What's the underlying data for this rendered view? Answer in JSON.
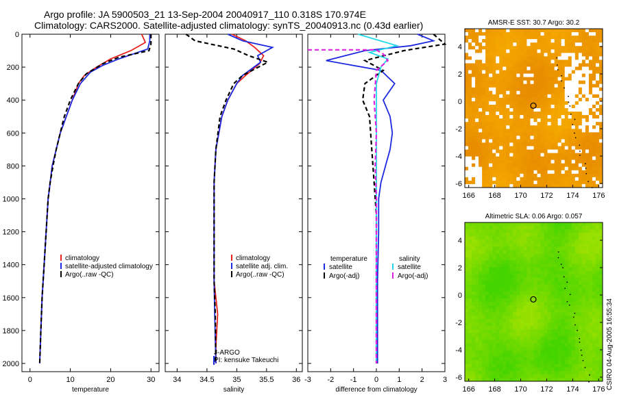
{
  "header": {
    "line1": "Argo profile: JA 5900503_21 13-Sep-2004 20040917_110 0.318S 170.974E",
    "line2": "Climatology: CARS2000. Satellite-adjusted climatology: synTS_20040913.nc (0.43d earlier)"
  },
  "credit": "CSIRO 04-Aug-2005 16:55:34",
  "chart_data": [
    {
      "type": "line",
      "id": "temperature",
      "xlabel": "temperature",
      "ylabel": "",
      "xlim": [
        -2,
        32
      ],
      "ylim": [
        2050,
        0
      ],
      "xticks": [
        0,
        10,
        20,
        30
      ],
      "xtick_labels": [
        "0",
        "10",
        "20",
        "30"
      ],
      "yticks": [
        0,
        200,
        400,
        600,
        800,
        1000,
        1200,
        1400,
        1600,
        1800,
        2000
      ],
      "ytick_labels": [
        "0",
        "200",
        "400",
        "600",
        "800",
        "1000",
        "1200",
        "1400",
        "1600",
        "1800",
        "2000"
      ],
      "series": [
        {
          "name": "climatology",
          "color": "#e8201c",
          "dash": "",
          "points": [
            [
              27.7,
              0
            ],
            [
              28.6,
              50
            ],
            [
              25,
              100
            ],
            [
              20,
              150
            ],
            [
              16.5,
              200
            ],
            [
              13.5,
              250
            ],
            [
              12,
              300
            ],
            [
              10.5,
              400
            ],
            [
              9,
              500
            ],
            [
              7.5,
              600
            ],
            [
              6.5,
              700
            ],
            [
              5.5,
              800
            ],
            [
              5,
              900
            ],
            [
              4.5,
              1000
            ],
            [
              4,
              1200
            ],
            [
              3.5,
              1400
            ],
            [
              3,
              1600
            ],
            [
              2.7,
              1800
            ],
            [
              2.4,
              2000
            ]
          ]
        },
        {
          "name": "satellite-adjusted climatology",
          "color": "#1c28e0",
          "dash": "",
          "points": [
            [
              29.7,
              0
            ],
            [
              29.7,
              40
            ],
            [
              29.2,
              90
            ],
            [
              22,
              150
            ],
            [
              18,
              190
            ],
            [
              15,
              230
            ],
            [
              12.5,
              300
            ],
            [
              10.5,
              400
            ],
            [
              9,
              500
            ],
            [
              7.5,
              600
            ],
            [
              6.5,
              700
            ],
            [
              5.5,
              800
            ],
            [
              5,
              900
            ],
            [
              4.5,
              1000
            ],
            [
              4,
              1200
            ],
            [
              3.5,
              1400
            ],
            [
              3,
              1600
            ],
            [
              2.7,
              1800
            ],
            [
              2.4,
              2000
            ]
          ]
        },
        {
          "name": "Argo(..raw -QC)",
          "color": "#000000",
          "dash": "6,4",
          "points": [
            [
              30,
              0
            ],
            [
              30,
              60
            ],
            [
              29.5,
              100
            ],
            [
              22,
              140
            ],
            [
              18,
              180
            ],
            [
              14,
              240
            ],
            [
              12,
              300
            ],
            [
              10,
              400
            ],
            [
              8.5,
              500
            ],
            [
              7.5,
              600
            ],
            [
              6.5,
              700
            ],
            [
              5.7,
              800
            ],
            [
              5,
              900
            ],
            [
              4.5,
              1000
            ],
            [
              4,
              1200
            ],
            [
              3.5,
              1400
            ],
            [
              3,
              1600
            ],
            [
              2.7,
              1800
            ],
            [
              2.4,
              2000
            ]
          ]
        }
      ]
    },
    {
      "type": "line",
      "id": "salinity",
      "xlabel": "salinity",
      "ylabel": "",
      "xlim": [
        33.8,
        36.1
      ],
      "ylim": [
        2050,
        0
      ],
      "xticks": [
        34,
        34.5,
        35,
        35.5,
        36
      ],
      "xtick_labels": [
        "34",
        "34.5",
        "35",
        "35.5",
        "36"
      ],
      "series": [
        {
          "name": "climatology",
          "color": "#e8201c",
          "dash": "",
          "points": [
            [
              34.92,
              0
            ],
            [
              35.15,
              40
            ],
            [
              35.3,
              80
            ],
            [
              35.45,
              130
            ],
            [
              35.38,
              180
            ],
            [
              35.15,
              250
            ],
            [
              35,
              300
            ],
            [
              34.85,
              400
            ],
            [
              34.75,
              500
            ],
            [
              34.65,
              700
            ],
            [
              34.62,
              900
            ],
            [
              34.62,
              1200
            ],
            [
              34.62,
              1500
            ],
            [
              34.68,
              1700
            ],
            [
              34.65,
              1900
            ],
            [
              34.65,
              2000
            ]
          ]
        },
        {
          "name": "satellite adj. clim.",
          "color": "#1c28e0",
          "dash": "",
          "points": [
            [
              34.85,
              0
            ],
            [
              35.1,
              40
            ],
            [
              35.6,
              80
            ],
            [
              35.35,
              130
            ],
            [
              35.4,
              170
            ],
            [
              35.1,
              250
            ],
            [
              35,
              300
            ],
            [
              34.85,
              400
            ],
            [
              34.75,
              500
            ],
            [
              34.65,
              700
            ],
            [
              34.62,
              900
            ],
            [
              34.62,
              1200
            ],
            [
              34.62,
              1500
            ],
            [
              34.63,
              1700
            ],
            [
              34.65,
              2000
            ]
          ]
        },
        {
          "name": "Argo(..raw -QC)",
          "color": "#000000",
          "dash": "6,4",
          "points": [
            [
              34.15,
              0
            ],
            [
              34.3,
              40
            ],
            [
              34.95,
              90
            ],
            [
              35.2,
              130
            ],
            [
              35.52,
              170
            ],
            [
              35.1,
              250
            ],
            [
              34.95,
              300
            ],
            [
              34.82,
              400
            ],
            [
              34.72,
              500
            ],
            [
              34.65,
              700
            ],
            [
              34.62,
              900
            ],
            [
              34.62,
              1200
            ],
            [
              34.62,
              1500
            ],
            [
              34.64,
              1700
            ],
            [
              34.65,
              2000
            ]
          ]
        }
      ],
      "annotations": [
        "J-ARGO",
        "PI: kensuke Takeuchi"
      ]
    },
    {
      "type": "line",
      "id": "difference",
      "xlabel": "difference from climatology",
      "ylabel": "",
      "xlim": [
        -3,
        3
      ],
      "ylim": [
        2050,
        0
      ],
      "xticks": [
        -3,
        -2,
        -1,
        0,
        1,
        2,
        3
      ],
      "xtick_labels": [
        "-3",
        "-2",
        "-1",
        "0",
        "1",
        "2",
        "3"
      ],
      "legend_groups": [
        {
          "title": "temperature"
        },
        {
          "title": "salinity"
        }
      ],
      "series": [
        {
          "name": "satellite",
          "group": "temperature",
          "color": "#1c28e0",
          "dash": "",
          "points": [
            [
              1.8,
              0
            ],
            [
              2.5,
              40
            ],
            [
              1.5,
              70
            ],
            [
              -0.5,
              100
            ],
            [
              -2.2,
              160
            ],
            [
              0.2,
              220
            ],
            [
              0.8,
              300
            ],
            [
              0.3,
              400
            ],
            [
              0.6,
              500
            ],
            [
              0.7,
              600
            ],
            [
              0.6,
              700
            ],
            [
              0.4,
              800
            ],
            [
              0.2,
              900
            ],
            [
              0.1,
              1000
            ],
            [
              0.1,
              1200
            ],
            [
              0.05,
              1500
            ],
            [
              0.05,
              2000
            ]
          ]
        },
        {
          "name": "Argo(-adj)",
          "group": "temperature",
          "color": "#000000",
          "dash": "6,4",
          "points": [
            [
              2.5,
              0
            ],
            [
              3,
              60
            ],
            [
              1.2,
              100
            ],
            [
              -0.5,
              160
            ],
            [
              0.3,
              220
            ],
            [
              -0.5,
              300
            ],
            [
              -0.6,
              400
            ],
            [
              -0.3,
              500
            ],
            [
              -0.2,
              700
            ],
            [
              -0.1,
              900
            ],
            [
              0,
              1100
            ],
            [
              0,
              1500
            ],
            [
              0,
              2000
            ]
          ]
        },
        {
          "name": "satellite",
          "group": "salinity",
          "color": "#22d8e8",
          "dash": "",
          "points": [
            [
              -0.8,
              0
            ],
            [
              0.9,
              70
            ],
            [
              -0.3,
              110
            ],
            [
              0.5,
              150
            ],
            [
              0.2,
              200
            ],
            [
              0,
              300
            ],
            [
              0,
              500
            ],
            [
              0,
              800
            ],
            [
              0,
              1200
            ],
            [
              0,
              1600
            ],
            [
              0,
              2000
            ]
          ]
        },
        {
          "name": "Argo(-adj)",
          "group": "salinity",
          "color": "#e020e0",
          "dash": "6,4",
          "points": [
            [
              -3,
              95
            ],
            [
              0,
              95
            ],
            [
              0.3,
              120
            ],
            [
              0.5,
              160
            ],
            [
              0,
              220
            ],
            [
              -0.1,
              400
            ],
            [
              0,
              600
            ],
            [
              -0.05,
              800
            ],
            [
              0,
              1000
            ],
            [
              0,
              1500
            ],
            [
              0,
              2000
            ]
          ]
        }
      ]
    },
    {
      "type": "heatmap",
      "id": "sst-map",
      "title": "AMSR-E SST: 30.7 Argo: 30.2",
      "xlim": [
        165.7,
        176.3
      ],
      "ylim": [
        -6.3,
        5.3
      ],
      "xticks": [
        166,
        168,
        170,
        172,
        174,
        176
      ],
      "xtick_labels": [
        "166",
        "168",
        "170",
        "172",
        "174",
        "176"
      ],
      "yticks": [
        -6,
        -4,
        -2,
        0,
        2,
        4
      ],
      "ytick_labels": [
        "-6",
        "-4",
        "-2",
        "0",
        "2",
        "4"
      ],
      "marker": [
        170.974,
        -0.318
      ],
      "colors": [
        "#f5a800",
        "#e88d00"
      ]
    },
    {
      "type": "heatmap",
      "id": "sla-map",
      "title": "Altimetric SLA: 0.06 Argo: 0.057",
      "xlim": [
        165.7,
        176.3
      ],
      "ylim": [
        -6.3,
        5.3
      ],
      "xticks": [
        166,
        168,
        170,
        172,
        174,
        176
      ],
      "xtick_labels": [
        "166",
        "168",
        "170",
        "172",
        "174",
        "176"
      ],
      "yticks": [
        -6,
        -4,
        -2,
        0,
        2,
        4
      ],
      "ytick_labels": [
        "-6",
        "-4",
        "-2",
        "0",
        "2",
        "4"
      ],
      "marker": [
        170.974,
        -0.318
      ],
      "colors": [
        "#9ae000",
        "#44d400"
      ]
    }
  ]
}
